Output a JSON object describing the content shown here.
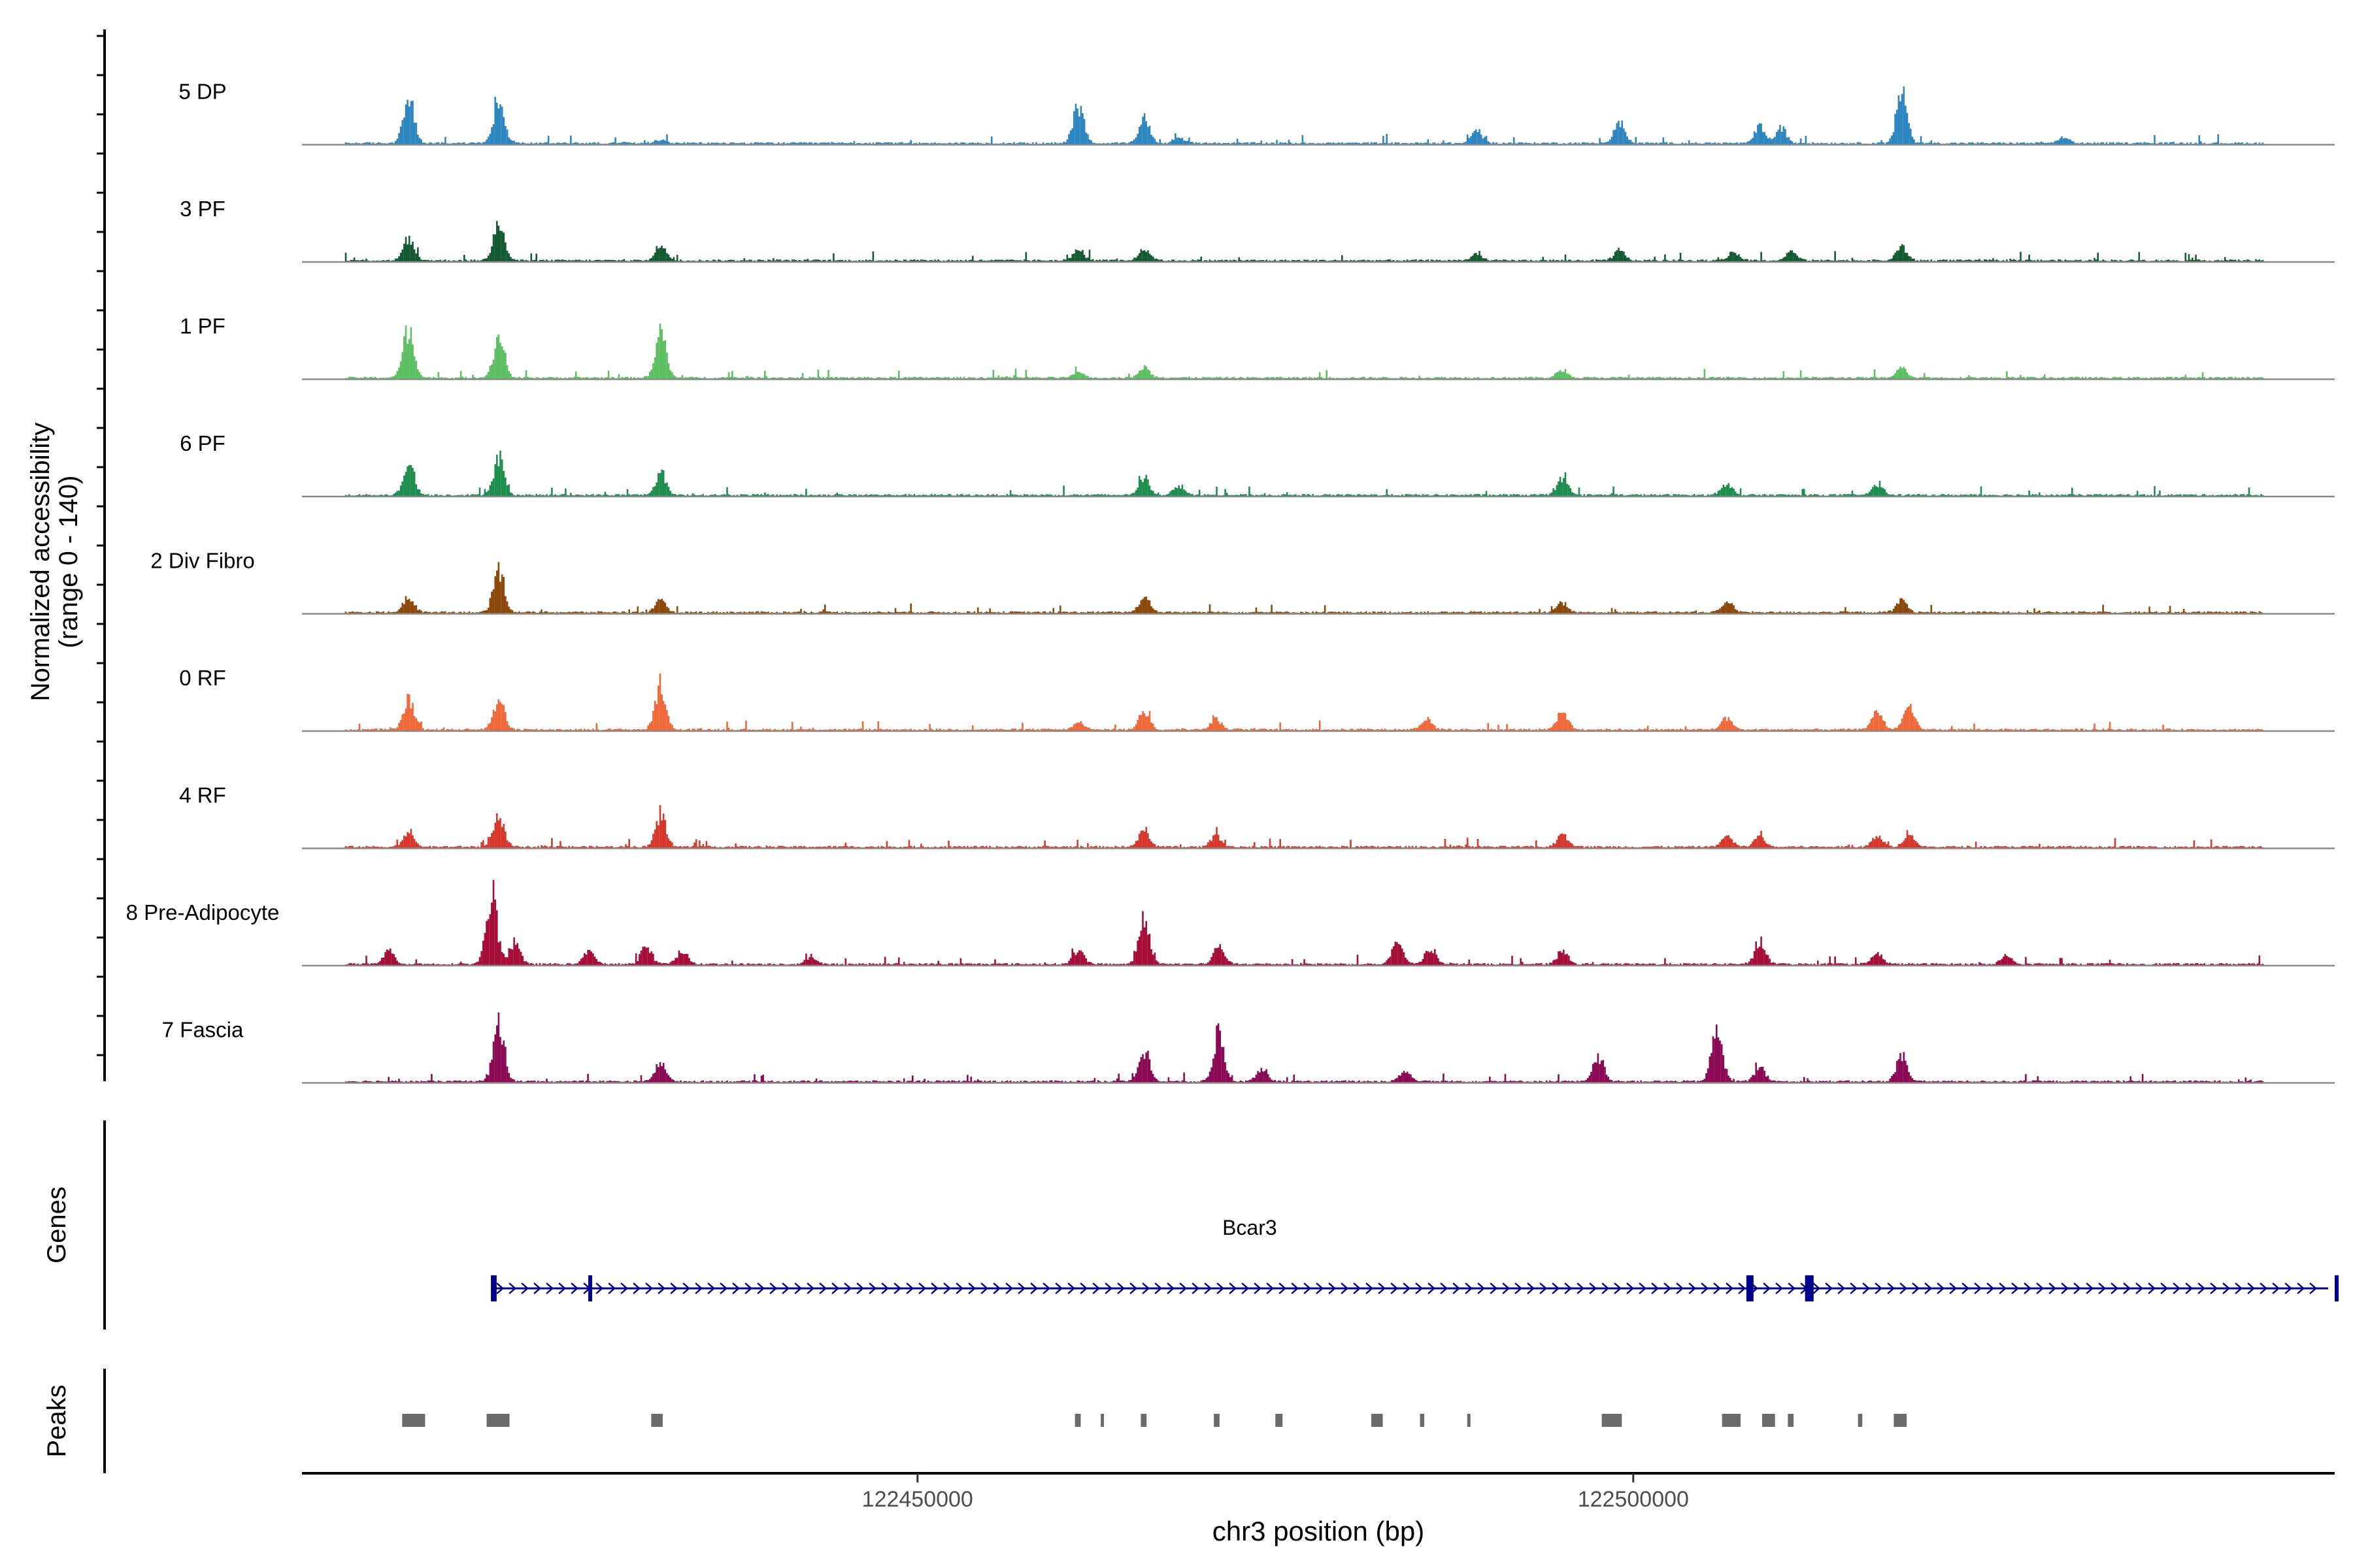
{
  "chart_data": {
    "type": "area",
    "y_axis_title": [
      "Normalized accessibility",
      "(range 0 - 140)"
    ],
    "y_range": [
      0,
      140
    ],
    "x_axis_title": "chr3 position (bp)",
    "x_range": [
      122407000,
      122549000
    ],
    "x_ticks": [
      {
        "value": 122450000,
        "label": "122450000"
      },
      {
        "value": 122500000,
        "label": "122500000"
      }
    ],
    "tracks": [
      {
        "name": "5 DP",
        "color": "#2E86C1",
        "peaks": [
          [
            122414400,
            80
          ],
          [
            122420700,
            85
          ],
          [
            122432000,
            6
          ],
          [
            122461200,
            70
          ],
          [
            122465800,
            45
          ],
          [
            122468200,
            10
          ],
          [
            122489000,
            25
          ],
          [
            122499000,
            38
          ],
          [
            122508800,
            30
          ],
          [
            122510300,
            25
          ],
          [
            122518700,
            90
          ],
          [
            122530000,
            10
          ]
        ]
      },
      {
        "name": "3 PF",
        "color": "#145A32",
        "peaks": [
          [
            122414400,
            40
          ],
          [
            122420700,
            75
          ],
          [
            122432000,
            28
          ],
          [
            122461200,
            20
          ],
          [
            122465800,
            22
          ],
          [
            122489000,
            12
          ],
          [
            122499000,
            18
          ],
          [
            122507000,
            15
          ],
          [
            122511000,
            15
          ],
          [
            122518700,
            25
          ]
        ]
      },
      {
        "name": "1 PF",
        "color": "#5EBF63",
        "peaks": [
          [
            122414400,
            90
          ],
          [
            122420700,
            80
          ],
          [
            122432000,
            80
          ],
          [
            122461200,
            10
          ],
          [
            122465800,
            18
          ],
          [
            122495000,
            15
          ],
          [
            122518700,
            18
          ]
        ]
      },
      {
        "name": "6 PF",
        "color": "#1E8E4E",
        "peaks": [
          [
            122414400,
            60
          ],
          [
            122420700,
            70
          ],
          [
            122432000,
            40
          ],
          [
            122465800,
            30
          ],
          [
            122468200,
            15
          ],
          [
            122495000,
            30
          ],
          [
            122506500,
            20
          ],
          [
            122517000,
            20
          ]
        ]
      },
      {
        "name": "2 Div Fibro",
        "color": "#8B4A0B",
        "peaks": [
          [
            122414400,
            28
          ],
          [
            122420700,
            80
          ],
          [
            122432000,
            20
          ],
          [
            122465800,
            30
          ],
          [
            122495000,
            18
          ],
          [
            122506500,
            20
          ],
          [
            122518700,
            22
          ]
        ]
      },
      {
        "name": "0 RF",
        "color": "#EF6A3A",
        "peaks": [
          [
            122414400,
            55
          ],
          [
            122420700,
            55
          ],
          [
            122432000,
            80
          ],
          [
            122461200,
            12
          ],
          [
            122465800,
            35
          ],
          [
            122470800,
            20
          ],
          [
            122485500,
            18
          ],
          [
            122495000,
            35
          ],
          [
            122506500,
            22
          ],
          [
            122517000,
            35
          ],
          [
            122519200,
            40
          ]
        ]
      },
      {
        "name": "4 RF",
        "color": "#D6382B",
        "peaks": [
          [
            122414400,
            25
          ],
          [
            122420700,
            55
          ],
          [
            122432000,
            60
          ],
          [
            122465800,
            30
          ],
          [
            122470800,
            20
          ],
          [
            122495000,
            25
          ],
          [
            122506500,
            20
          ],
          [
            122508800,
            20
          ],
          [
            122517000,
            20
          ],
          [
            122519200,
            25
          ]
        ]
      },
      {
        "name": "8 Pre-Adipocyte",
        "color": "#A50F3A",
        "peaks": [
          [
            122413000,
            25
          ],
          [
            122420200,
            130
          ],
          [
            122421800,
            40
          ],
          [
            122427000,
            25
          ],
          [
            122431000,
            35
          ],
          [
            122433500,
            25
          ],
          [
            122442500,
            12
          ],
          [
            122461200,
            25
          ],
          [
            122465800,
            90
          ],
          [
            122471000,
            30
          ],
          [
            122483500,
            40
          ],
          [
            122485800,
            30
          ],
          [
            122495000,
            25
          ],
          [
            122508800,
            40
          ],
          [
            122517000,
            20
          ],
          [
            122526000,
            15
          ]
        ]
      },
      {
        "name": "7 Fascia",
        "color": "#8B0A55",
        "peaks": [
          [
            122420700,
            110
          ],
          [
            122432000,
            35
          ],
          [
            122465800,
            55
          ],
          [
            122471000,
            90
          ],
          [
            122474000,
            20
          ],
          [
            122484000,
            20
          ],
          [
            122497500,
            45
          ],
          [
            122505800,
            105
          ],
          [
            122508800,
            25
          ],
          [
            122518700,
            50
          ]
        ]
      }
    ],
    "genes": [
      {
        "name": "Bcar3",
        "start": 122420200,
        "end": 122550000,
        "strand": "+",
        "exons": [
          [
            122420200,
            122420600
          ],
          [
            122427000,
            122427200
          ],
          [
            122507900,
            122508400
          ],
          [
            122512000,
            122512600
          ],
          [
            122549000,
            122550000
          ]
        ]
      }
    ],
    "peak_regions": [
      [
        122414000,
        122415600
      ],
      [
        122419900,
        122421500
      ],
      [
        122431400,
        122432200
      ],
      [
        122461000,
        122461400
      ],
      [
        122462800,
        122462950
      ],
      [
        122465600,
        122466000
      ],
      [
        122470700,
        122471100
      ],
      [
        122475000,
        122475500
      ],
      [
        122481700,
        122482500
      ],
      [
        122485100,
        122485400
      ],
      [
        122488400,
        122488600
      ],
      [
        122497800,
        122499200
      ],
      [
        122506200,
        122507500
      ],
      [
        122509000,
        122509900
      ],
      [
        122510800,
        122511200
      ],
      [
        122515700,
        122516000
      ],
      [
        122518200,
        122519100
      ]
    ]
  },
  "panels": {
    "genes_label": "Genes",
    "peaks_label": "Peaks"
  }
}
